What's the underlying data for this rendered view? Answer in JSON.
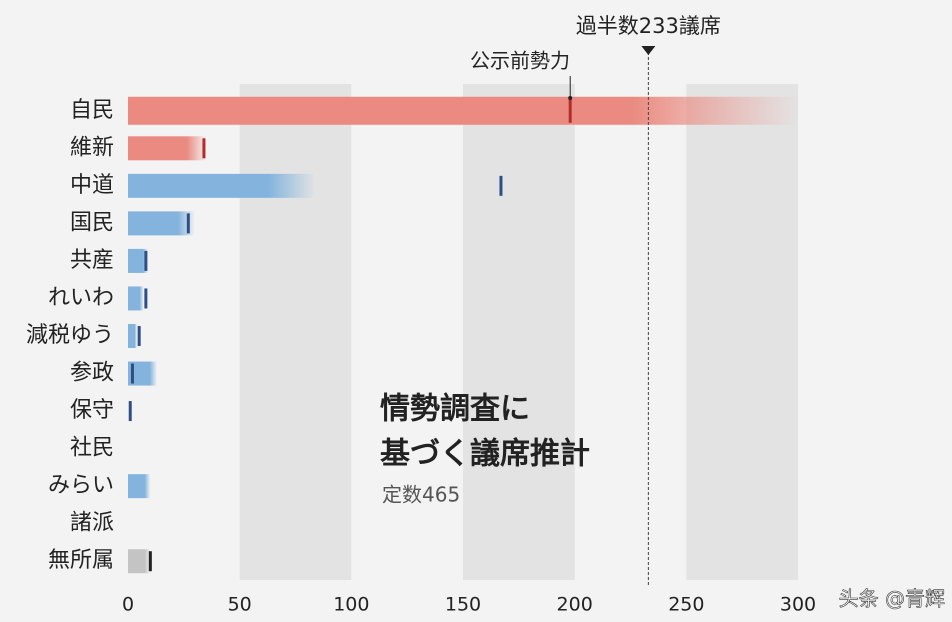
{
  "chart_data": {
    "type": "bar",
    "title_lines": [
      "情勢調査に",
      "基づく議席推計"
    ],
    "subtitle": "定数465",
    "categories": [
      "自民",
      "維新",
      "中道",
      "国民",
      "共産",
      "れいわ",
      "減税ゆう",
      "参政",
      "保守",
      "社民",
      "みらい",
      "諸派",
      "無所属"
    ],
    "series": [
      {
        "name": "議席推計",
        "values": [
          300,
          35,
          84,
          30,
          9,
          7,
          4,
          13,
          null,
          null,
          10,
          null,
          10
        ],
        "colors": [
          "#ea8a80",
          "#ea8a80",
          "#84b4de",
          "#84b4de",
          "#84b4de",
          "#84b4de",
          "#84b4de",
          "#84b4de",
          "#84b4de",
          "#84b4de",
          "#84b4de",
          "#84b4de",
          "#c4c4c4"
        ]
      },
      {
        "name": "公示前勢力",
        "values": [
          198,
          34,
          167,
          27,
          8,
          8,
          5,
          2,
          1,
          null,
          null,
          null,
          10
        ],
        "colors": [
          "#b32b2b",
          "#b32b2b",
          "#2d4f86",
          "#2d4f86",
          "#2d4f86",
          "#2d4f86",
          "#2d4f86",
          "#2d4f86",
          "#2d4f86",
          "#2d4f86",
          "#2d4f86",
          "#2d4f86",
          "#222222"
        ]
      }
    ],
    "majority": {
      "value": 233,
      "label": "過半数233議席"
    },
    "xlim": [
      0,
      300
    ],
    "xticks": [
      0,
      50,
      100,
      150,
      200,
      250,
      300
    ],
    "watermark": "头条 @青辉"
  }
}
